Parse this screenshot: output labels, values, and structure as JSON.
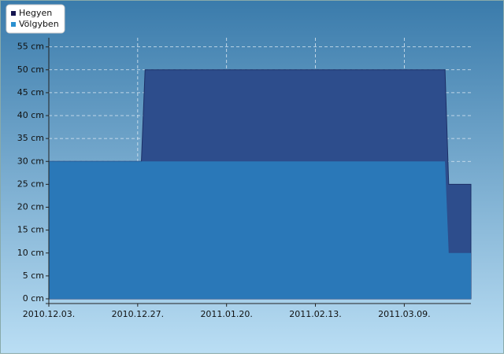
{
  "chart_data": {
    "type": "area",
    "x": [
      "2010-12-03",
      "2010-12-28",
      "2010-12-29",
      "2011-03-20",
      "2011-03-21",
      "2011-03-27"
    ],
    "series": [
      {
        "name": "Hegyen",
        "color": "#2d4d8c",
        "values": [
          30,
          30,
          50,
          50,
          25,
          25
        ]
      },
      {
        "name": "Völgyben",
        "color": "#2a78b8",
        "values": [
          30,
          30,
          30,
          30,
          10,
          10
        ]
      }
    ],
    "xlim": [
      "2010-12-03",
      "2011-03-27"
    ],
    "xticks": [
      {
        "value": "2010-12-03",
        "label": "2010.12.03."
      },
      {
        "value": "2010-12-27",
        "label": "2010.12.27."
      },
      {
        "value": "2011-01-20",
        "label": "2011.01.20."
      },
      {
        "value": "2011-02-13",
        "label": "2011.02.13."
      },
      {
        "value": "2011-03-09",
        "label": "2011.03.09."
      }
    ],
    "ylim": [
      0,
      57
    ],
    "yticks": [
      {
        "value": 0,
        "label": "0 cm"
      },
      {
        "value": 5,
        "label": "5 cm"
      },
      {
        "value": 10,
        "label": "10 cm"
      },
      {
        "value": 15,
        "label": "15 cm"
      },
      {
        "value": 20,
        "label": "20 cm"
      },
      {
        "value": 25,
        "label": "25 cm"
      },
      {
        "value": 30,
        "label": "30 cm"
      },
      {
        "value": 35,
        "label": "35 cm"
      },
      {
        "value": 40,
        "label": "40 cm"
      },
      {
        "value": 45,
        "label": "45 cm"
      },
      {
        "value": 50,
        "label": "50 cm"
      },
      {
        "value": 55,
        "label": "55 cm"
      }
    ],
    "grid": true,
    "legend": "top-left"
  }
}
